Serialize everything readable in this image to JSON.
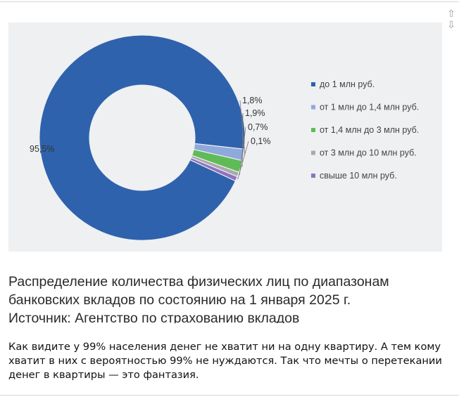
{
  "chart_data": {
    "type": "donut",
    "series": [
      {
        "name": "до 1 млн руб.",
        "value": 95.5,
        "label": "95,5%",
        "color": "#2f62ad"
      },
      {
        "name": "от 1 млн до 1,4 млн руб.",
        "value": 1.8,
        "label": "1,8%",
        "color": "#8fa9dc"
      },
      {
        "name": "от 1,4 млн до 3 млн руб.",
        "value": 1.9,
        "label": "1,9%",
        "color": "#5fbb57"
      },
      {
        "name": "от 3 млн до 10 млн руб.",
        "value": 0.7,
        "label": "0,7%",
        "color": "#a9a9a9"
      },
      {
        "name": "свыше 10 млн руб.",
        "value": 0.1,
        "label": "0,1%",
        "color": "#8f72bf"
      }
    ],
    "legend_position": "right"
  },
  "caption": {
    "line1": "Распределение количества физических лиц по диапазонам",
    "line2": "банковских вкладов по состоянию на 1 января 2025 г.",
    "line3": "Источник: Агентство по страхованию вкладов"
  },
  "comment": {
    "text": "Как видите у 99% населения денег не хватит ни на одну квартиру. А тем кому хватит в них с вероятностью 99% не нуждаются. Так что мечты о перетекании денег в квартиры — это фантазия."
  },
  "scroll": {
    "up_icon": "⇧",
    "down_icon": "⇩"
  }
}
